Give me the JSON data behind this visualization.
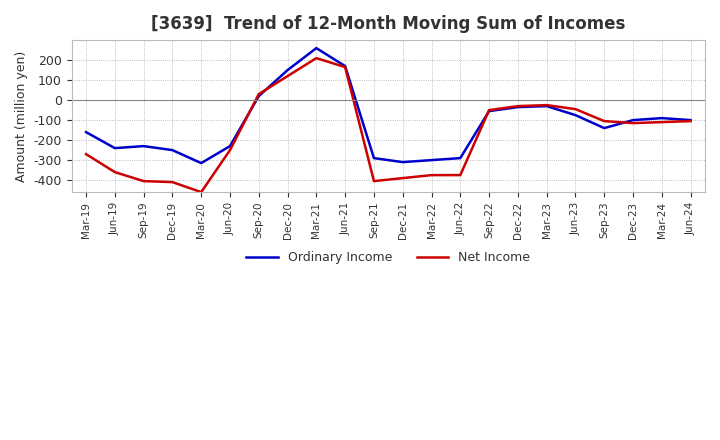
{
  "title": "[3639]  Trend of 12-Month Moving Sum of Incomes",
  "ylabel": "Amount (million yen)",
  "ylim": [
    -460,
    300
  ],
  "yticks": [
    -400,
    -300,
    -200,
    -100,
    0,
    100,
    200
  ],
  "background_color": "#ffffff",
  "grid_color": "#aaaaaa",
  "ordinary_income_color": "#0000cc",
  "net_income_color": "#cc0000",
  "x_labels": [
    "Mar-19",
    "Jun-19",
    "Sep-19",
    "Dec-19",
    "Mar-20",
    "Jun-20",
    "Sep-20",
    "Dec-20",
    "Mar-21",
    "Jun-21",
    "Sep-21",
    "Dec-21",
    "Mar-22",
    "Jun-22",
    "Sep-22",
    "Dec-22",
    "Mar-23",
    "Jun-23",
    "Sep-23",
    "Dec-23",
    "Mar-24",
    "Jun-24"
  ],
  "ordinary_income": [
    -160,
    -240,
    -230,
    -250,
    -315,
    -230,
    20,
    150,
    260,
    170,
    -290,
    -310,
    -300,
    -290,
    -55,
    -35,
    -30,
    -75,
    -140,
    -100,
    -90,
    -100
  ],
  "net_income": [
    -270,
    -360,
    -405,
    -410,
    -460,
    -250,
    30,
    120,
    210,
    165,
    -405,
    -390,
    -375,
    -375,
    -50,
    -30,
    -25,
    -45,
    -105,
    -115,
    -110,
    -105
  ],
  "legend_labels": [
    "Ordinary Income",
    "Net Income"
  ]
}
